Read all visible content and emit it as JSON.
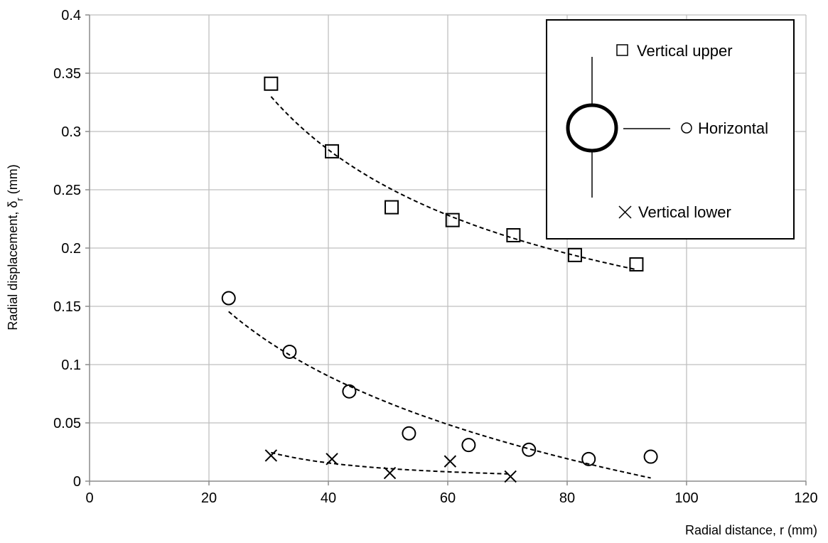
{
  "chart_data": {
    "type": "scatter",
    "title": "",
    "xlabel": "Radial distance, r (mm)",
    "ylabel_main": "Radial displacement, δ",
    "ylabel_sub": "r",
    "ylabel_unit": " (mm)",
    "xlim": [
      0,
      120
    ],
    "ylim": [
      0,
      0.4
    ],
    "x_ticks": [
      0,
      20,
      40,
      60,
      80,
      100,
      120
    ],
    "x_tick_labels": [
      "0",
      "20",
      "40",
      "60",
      "80",
      "100",
      "120"
    ],
    "y_ticks": [
      0,
      0.05,
      0.1,
      0.15,
      0.2,
      0.25,
      0.3,
      0.35,
      0.4
    ],
    "y_tick_labels": [
      "0",
      "0.05",
      "0.1",
      "0.15",
      "0.2",
      "0.25",
      "0.3",
      "0.35",
      "0.4"
    ],
    "grid": true,
    "legend_position": "top-right",
    "series": [
      {
        "name": "Vertical upper",
        "marker": "square",
        "x": [
          30.4,
          40.6,
          50.6,
          60.8,
          71.0,
          81.3,
          91.6
        ],
        "y": [
          0.341,
          0.283,
          0.235,
          0.224,
          0.211,
          0.194,
          0.186
        ],
        "trendline": {
          "x_range": [
            30.4,
            91.6
          ],
          "type": "power"
        }
      },
      {
        "name": "Horizontal",
        "marker": "circle",
        "x": [
          23.3,
          33.5,
          43.5,
          53.5,
          63.5,
          73.6,
          83.6,
          94.0
        ],
        "y": [
          0.157,
          0.111,
          0.077,
          0.041,
          0.031,
          0.027,
          0.019,
          0.021
        ],
        "trendline": {
          "x_range": [
            23.3,
            94.0
          ],
          "type": "log"
        }
      },
      {
        "name": "Vertical lower",
        "marker": "x",
        "x": [
          30.4,
          40.6,
          50.3,
          60.4,
          70.5
        ],
        "y": [
          0.022,
          0.019,
          0.007,
          0.017,
          0.004
        ],
        "trendline": {
          "x_range": [
            30.4,
            70.5
          ],
          "type": "power"
        }
      }
    ]
  },
  "legend": {
    "upper_label": "Vertical upper",
    "horizontal_label": "Horizontal",
    "lower_label": "Vertical lower"
  }
}
